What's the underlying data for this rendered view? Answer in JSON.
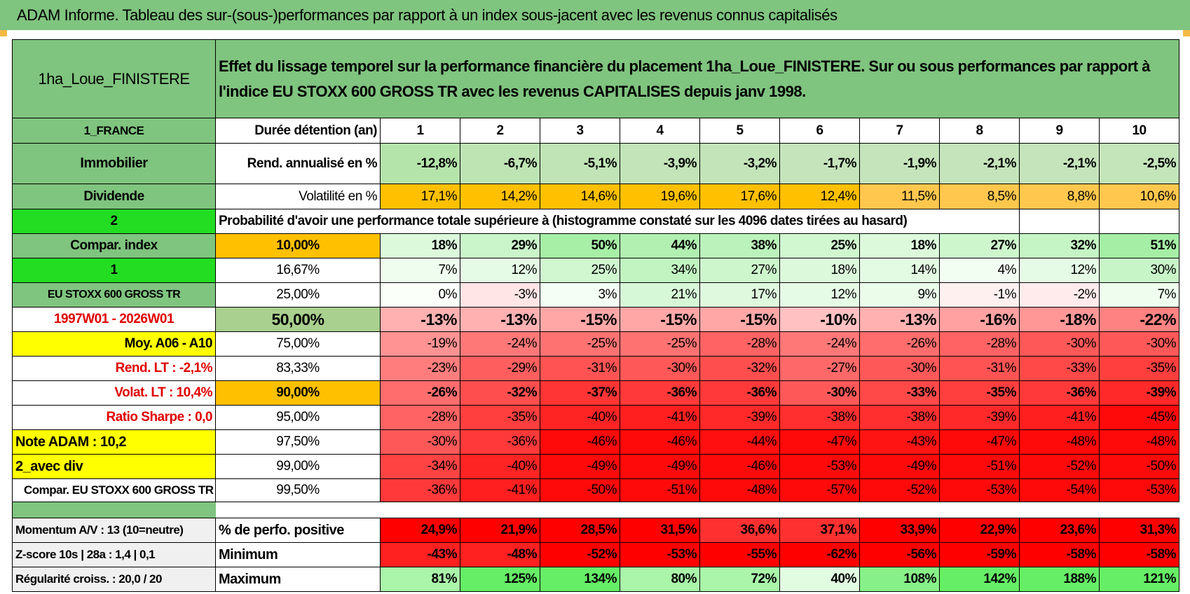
{
  "title": "ADAM Informe. Tableau des sur-(sous-)performances par rapport à un index sous-jacent avec les revenus connus capitalisés",
  "header": {
    "name": "1ha_Loue_FINISTERE",
    "description": "Effet du lissage temporel sur la performance financière du placement 1ha_Loue_FINISTERE. Sur ou sous performances par rapport à l'indice EU STOXX 600 GROSS TR avec les revenus CAPITALISES depuis janv 1998."
  },
  "rows": [
    {
      "label": "1_FRANCE",
      "cells": [
        "Durée détention (an)",
        "1",
        "2",
        "3",
        "4",
        "5",
        "6",
        "7",
        "8",
        "9",
        "10"
      ]
    },
    {
      "label": "Immobilier",
      "cells": [
        "Rend. annualisé en %",
        "-12,8%",
        "-6,7%",
        "-5,1%",
        "-3,9%",
        "-3,2%",
        "-1,7%",
        "-1,9%",
        "-2,1%",
        "-2,1%",
        "-2,5%"
      ]
    },
    {
      "label": "Dividende",
      "cells": [
        "Volatilité en %",
        "17,1%",
        "14,2%",
        "14,6%",
        "19,6%",
        "17,6%",
        "12,4%",
        "11,5%",
        "8,5%",
        "8,8%",
        "10,6%"
      ]
    },
    {
      "label": "2",
      "cells": [
        "Probabilité d'avoir une performance totale supérieure à (histogramme constaté sur les 4096 dates tirées au hasard)"
      ]
    },
    {
      "label": "Compar. index",
      "cells": [
        "10,00%",
        "18%",
        "29%",
        "50%",
        "44%",
        "38%",
        "25%",
        "18%",
        "27%",
        "32%",
        "51%"
      ]
    },
    {
      "label": "1",
      "cells": [
        "16,67%",
        "7%",
        "12%",
        "25%",
        "34%",
        "27%",
        "18%",
        "14%",
        "4%",
        "12%",
        "30%"
      ]
    },
    {
      "label": "EU STOXX 600 GROSS TR",
      "cells": [
        "25,00%",
        "0%",
        "-3%",
        "3%",
        "21%",
        "17%",
        "12%",
        "9%",
        "-1%",
        "-2%",
        "7%"
      ]
    },
    {
      "label": "1997W01 - 2026W01",
      "cells": [
        "50,00%",
        "-13%",
        "-13%",
        "-15%",
        "-15%",
        "-15%",
        "-10%",
        "-13%",
        "-16%",
        "-18%",
        "-22%"
      ]
    },
    {
      "label": "Moy. A06 - A10",
      "cells": [
        "75,00%",
        "-19%",
        "-24%",
        "-25%",
        "-25%",
        "-28%",
        "-24%",
        "-26%",
        "-28%",
        "-30%",
        "-30%"
      ]
    },
    {
      "label": "Rend. LT :    -2,1%",
      "cells": [
        "83,33%",
        "-23%",
        "-29%",
        "-31%",
        "-30%",
        "-32%",
        "-27%",
        "-30%",
        "-31%",
        "-33%",
        "-35%"
      ]
    },
    {
      "label": "Volat. LT :    10,4%",
      "cells": [
        "90,00%",
        "-26%",
        "-32%",
        "-37%",
        "-36%",
        "-36%",
        "-30%",
        "-33%",
        "-35%",
        "-36%",
        "-39%"
      ]
    },
    {
      "label": "Ratio Sharpe :    0,0",
      "cells": [
        "95,00%",
        "-28%",
        "-35%",
        "-40%",
        "-41%",
        "-39%",
        "-38%",
        "-38%",
        "-39%",
        "-41%",
        "-45%"
      ]
    },
    {
      "label": "Note ADAM : 10,2",
      "cells": [
        "97,50%",
        "-30%",
        "-36%",
        "-46%",
        "-46%",
        "-44%",
        "-47%",
        "-43%",
        "-47%",
        "-48%",
        "-48%"
      ]
    },
    {
      "label": "2_avec div",
      "cells": [
        "99,00%",
        "-34%",
        "-40%",
        "-49%",
        "-49%",
        "-46%",
        "-53%",
        "-49%",
        "-51%",
        "-52%",
        "-50%"
      ]
    },
    {
      "label": "Compar. EU STOXX 600 GROSS TR",
      "cells": [
        "99,50%",
        "-36%",
        "-41%",
        "-50%",
        "-51%",
        "-48%",
        "-57%",
        "-52%",
        "-53%",
        "-54%",
        "-53%"
      ]
    }
  ],
  "footer": [
    {
      "label": "Momentum A/V : 13 (10=neutre)",
      "cells": [
        "% de perfo. positive",
        "24,9%",
        "21,9%",
        "28,5%",
        "31,5%",
        "36,6%",
        "37,1%",
        "33,9%",
        "22,9%",
        "23,6%",
        "31,3%"
      ]
    },
    {
      "label": "Z-score 10s | 28a : 1,4 | 0,1",
      "cells": [
        "Minimum",
        "-43%",
        "-48%",
        "-52%",
        "-53%",
        "-55%",
        "-62%",
        "-56%",
        "-59%",
        "-58%",
        "-58%"
      ]
    },
    {
      "label": "Régularité croiss. : 20,0 / 20",
      "cells": [
        "Maximum",
        "81%",
        "125%",
        "134%",
        "80%",
        "72%",
        "40%",
        "108%",
        "142%",
        "188%",
        "121%"
      ]
    }
  ]
}
